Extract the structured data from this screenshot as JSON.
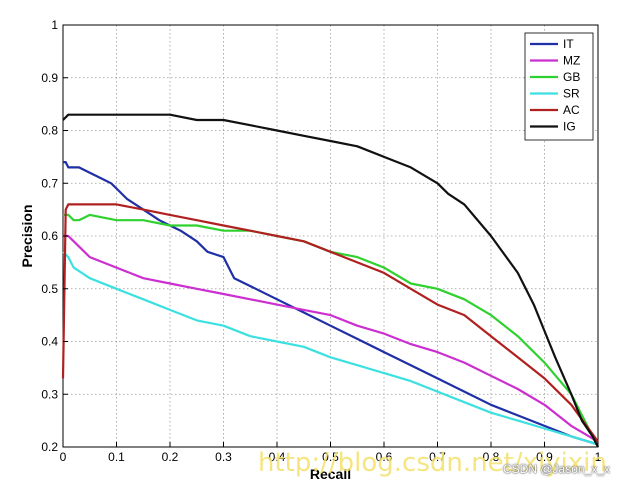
{
  "chart_data": {
    "type": "line",
    "title": "",
    "xlabel": "Recall",
    "ylabel": "Precision",
    "xlim": [
      0,
      1
    ],
    "ylim": [
      0.2,
      1
    ],
    "xticks": [
      "0",
      "0.1",
      "0.2",
      "0.3",
      "0.4",
      "0.5",
      "0.6",
      "0.7",
      "0.8",
      "0.9",
      "1"
    ],
    "yticks": [
      "0.2",
      "0.3",
      "0.4",
      "0.5",
      "0.6",
      "0.7",
      "0.8",
      "0.9",
      "1"
    ],
    "grid": true,
    "legend_position": "top-right",
    "series": [
      {
        "name": "IT",
        "color": "#1f2fa6",
        "x": [
          0,
          0.005,
          0.01,
          0.02,
          0.03,
          0.05,
          0.07,
          0.09,
          0.1,
          0.12,
          0.15,
          0.18,
          0.2,
          0.22,
          0.25,
          0.27,
          0.3,
          0.31,
          0.32,
          0.35,
          0.4,
          0.45,
          0.5,
          0.55,
          0.6,
          0.65,
          0.7,
          0.75,
          0.8,
          0.85,
          0.9,
          0.95,
          1.0
        ],
        "y": [
          0.74,
          0.74,
          0.73,
          0.73,
          0.73,
          0.72,
          0.71,
          0.7,
          0.69,
          0.67,
          0.65,
          0.63,
          0.62,
          0.61,
          0.59,
          0.57,
          0.56,
          0.54,
          0.52,
          0.505,
          0.48,
          0.455,
          0.43,
          0.405,
          0.38,
          0.355,
          0.33,
          0.305,
          0.28,
          0.26,
          0.24,
          0.22,
          0.205
        ]
      },
      {
        "name": "MZ",
        "color": "#cc2fd0",
        "x": [
          0,
          0.01,
          0.02,
          0.05,
          0.1,
          0.15,
          0.2,
          0.25,
          0.3,
          0.35,
          0.4,
          0.45,
          0.5,
          0.55,
          0.6,
          0.65,
          0.7,
          0.75,
          0.8,
          0.85,
          0.9,
          0.95,
          1.0
        ],
        "y": [
          0.6,
          0.6,
          0.59,
          0.56,
          0.54,
          0.52,
          0.51,
          0.5,
          0.49,
          0.48,
          0.47,
          0.46,
          0.45,
          0.43,
          0.415,
          0.395,
          0.38,
          0.36,
          0.335,
          0.31,
          0.28,
          0.24,
          0.21
        ]
      },
      {
        "name": "GB",
        "color": "#2fd12f",
        "x": [
          0,
          0.01,
          0.02,
          0.03,
          0.05,
          0.1,
          0.15,
          0.2,
          0.25,
          0.3,
          0.35,
          0.4,
          0.45,
          0.5,
          0.55,
          0.6,
          0.65,
          0.7,
          0.75,
          0.8,
          0.85,
          0.9,
          0.95,
          0.98,
          1.0
        ],
        "y": [
          0.64,
          0.64,
          0.63,
          0.63,
          0.64,
          0.63,
          0.63,
          0.62,
          0.62,
          0.61,
          0.61,
          0.6,
          0.59,
          0.57,
          0.56,
          0.54,
          0.51,
          0.5,
          0.48,
          0.45,
          0.41,
          0.36,
          0.3,
          0.24,
          0.2
        ]
      },
      {
        "name": "SR",
        "color": "#3ce0e0",
        "x": [
          0,
          0.01,
          0.02,
          0.05,
          0.1,
          0.15,
          0.2,
          0.25,
          0.3,
          0.35,
          0.4,
          0.45,
          0.5,
          0.55,
          0.6,
          0.65,
          0.7,
          0.75,
          0.8,
          0.85,
          0.9,
          0.95,
          1.0
        ],
        "y": [
          0.57,
          0.56,
          0.54,
          0.52,
          0.5,
          0.48,
          0.46,
          0.44,
          0.43,
          0.41,
          0.4,
          0.39,
          0.37,
          0.355,
          0.34,
          0.325,
          0.305,
          0.285,
          0.265,
          0.25,
          0.235,
          0.22,
          0.205
        ]
      },
      {
        "name": "AC",
        "color": "#b02020",
        "x": [
          0,
          0.005,
          0.01,
          0.05,
          0.1,
          0.15,
          0.2,
          0.25,
          0.3,
          0.35,
          0.4,
          0.45,
          0.5,
          0.55,
          0.6,
          0.65,
          0.7,
          0.75,
          0.8,
          0.85,
          0.9,
          0.95,
          1.0
        ],
        "y": [
          0.33,
          0.65,
          0.66,
          0.66,
          0.66,
          0.65,
          0.64,
          0.63,
          0.62,
          0.61,
          0.6,
          0.59,
          0.57,
          0.55,
          0.53,
          0.5,
          0.47,
          0.45,
          0.41,
          0.37,
          0.33,
          0.28,
          0.21
        ]
      },
      {
        "name": "IG",
        "color": "#111111",
        "x": [
          0,
          0.01,
          0.02,
          0.05,
          0.1,
          0.15,
          0.2,
          0.25,
          0.3,
          0.35,
          0.4,
          0.45,
          0.5,
          0.55,
          0.6,
          0.65,
          0.7,
          0.72,
          0.75,
          0.8,
          0.85,
          0.88,
          0.9,
          0.92,
          0.95,
          0.97,
          0.99,
          1.0
        ],
        "y": [
          0.82,
          0.83,
          0.83,
          0.83,
          0.83,
          0.83,
          0.83,
          0.82,
          0.82,
          0.81,
          0.8,
          0.79,
          0.78,
          0.77,
          0.75,
          0.73,
          0.7,
          0.68,
          0.66,
          0.6,
          0.53,
          0.47,
          0.42,
          0.37,
          0.3,
          0.25,
          0.22,
          0.2
        ]
      }
    ]
  },
  "watermark": {
    "url": "http://blog.csdn.net/xiyixin",
    "credit": "CSDN @Jason_x_x"
  }
}
